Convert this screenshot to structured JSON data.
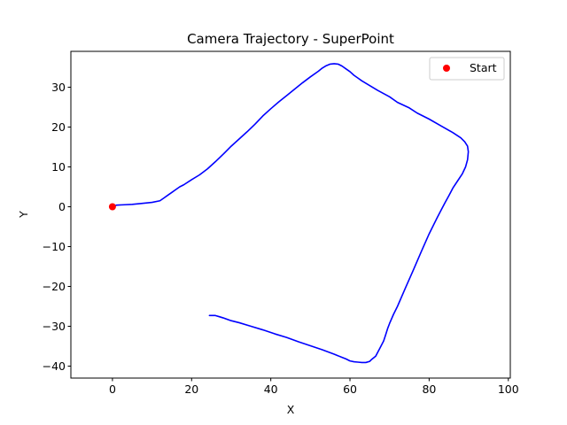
{
  "chart_data": {
    "type": "line",
    "title": "Camera Trajectory - SuperPoint",
    "xlabel": "X",
    "ylabel": "Y",
    "xlim": [
      -10.5,
      100.5
    ],
    "ylim": [
      -43,
      39
    ],
    "xticks": [
      0,
      20,
      40,
      60,
      80,
      100
    ],
    "yticks": [
      -40,
      -30,
      -20,
      -10,
      0,
      10,
      20,
      30
    ],
    "grid": false,
    "legend_placement": "top-right",
    "series": [
      {
        "color": "#0000ff",
        "x": [
          0,
          1,
          3,
          5,
          7,
          10,
          12,
          13,
          14,
          15,
          16,
          17,
          18,
          20,
          22,
          24,
          26,
          28,
          30,
          32,
          34,
          36,
          38,
          40,
          42,
          44,
          46,
          48,
          50,
          52,
          53,
          54,
          55,
          56,
          57,
          58,
          59,
          60,
          61,
          62,
          63,
          65,
          67,
          70,
          72,
          75,
          77,
          80,
          83,
          86,
          88,
          89,
          89.7,
          89.9,
          89.7,
          89.2,
          88.4,
          87.2,
          86,
          85,
          84,
          83,
          82,
          81,
          80,
          78,
          76,
          74,
          72,
          71.5,
          71,
          70,
          69.5,
          69,
          68.5,
          67.5,
          66.5,
          65.5,
          65,
          64,
          63,
          62,
          61,
          60,
          59,
          58,
          56,
          53,
          50,
          47,
          44,
          41,
          38,
          35,
          32,
          30,
          28,
          27,
          26,
          24.5
        ],
        "y": [
          0,
          0.4,
          0.5,
          0.6,
          0.8,
          1.1,
          1.5,
          2.2,
          2.9,
          3.6,
          4.3,
          5.0,
          5.5,
          6.8,
          8.0,
          9.5,
          11.3,
          13.2,
          15.2,
          17.0,
          18.8,
          20.7,
          22.8,
          24.6,
          26.3,
          27.9,
          29.5,
          31.1,
          32.6,
          34.0,
          34.8,
          35.4,
          35.8,
          35.9,
          35.8,
          35.3,
          34.6,
          33.9,
          33.0,
          32.3,
          31.6,
          30.4,
          29.2,
          27.6,
          26.2,
          24.8,
          23.5,
          22.0,
          20.3,
          18.6,
          17.3,
          16.3,
          15.2,
          13.8,
          11.8,
          10.0,
          8.3,
          6.5,
          4.7,
          2.8,
          1.0,
          -0.9,
          -2.8,
          -4.8,
          -6.8,
          -11.3,
          -15.9,
          -20.4,
          -25.0,
          -26.0,
          -27.0,
          -29.3,
          -30.6,
          -32.2,
          -33.7,
          -35.6,
          -37.5,
          -38.3,
          -38.8,
          -39.1,
          -39.1,
          -39.0,
          -38.9,
          -38.7,
          -38.2,
          -37.8,
          -37.0,
          -35.9,
          -34.9,
          -33.9,
          -32.8,
          -31.9,
          -30.9,
          -30.0,
          -29.1,
          -28.6,
          -27.9,
          -27.6,
          -27.3,
          -27.3
        ]
      }
    ],
    "legend": [
      {
        "label": "Start",
        "marker": "circle",
        "color": "#ff0000"
      }
    ],
    "start_point": {
      "x": 0,
      "y": 0,
      "color": "#ff0000"
    }
  }
}
